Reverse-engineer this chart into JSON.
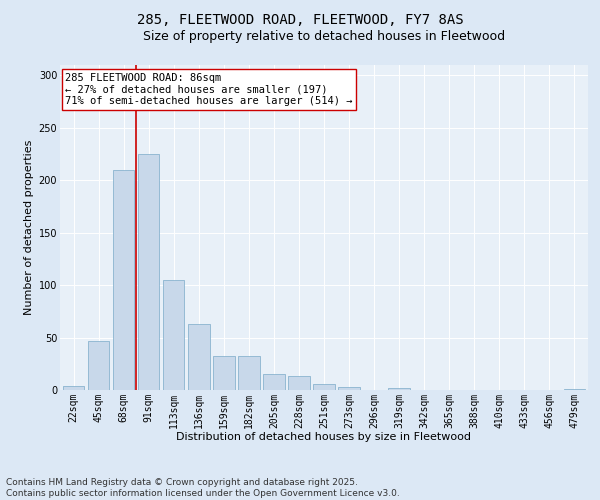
{
  "title": "285, FLEETWOOD ROAD, FLEETWOOD, FY7 8AS",
  "subtitle": "Size of property relative to detached houses in Fleetwood",
  "xlabel": "Distribution of detached houses by size in Fleetwood",
  "ylabel": "Number of detached properties",
  "categories": [
    "22sqm",
    "45sqm",
    "68sqm",
    "91sqm",
    "113sqm",
    "136sqm",
    "159sqm",
    "182sqm",
    "205sqm",
    "228sqm",
    "251sqm",
    "273sqm",
    "296sqm",
    "319sqm",
    "342sqm",
    "365sqm",
    "388sqm",
    "410sqm",
    "433sqm",
    "456sqm",
    "479sqm"
  ],
  "values": [
    4,
    47,
    210,
    225,
    105,
    63,
    32,
    32,
    15,
    13,
    6,
    3,
    0,
    2,
    0,
    0,
    0,
    0,
    0,
    0,
    1
  ],
  "bar_color": "#c8d8ea",
  "bar_edge_color": "#7aaac8",
  "ylim": [
    0,
    310
  ],
  "yticks": [
    0,
    50,
    100,
    150,
    200,
    250,
    300
  ],
  "vline_color": "#cc0000",
  "annotation_text": "285 FLEETWOOD ROAD: 86sqm\n← 27% of detached houses are smaller (197)\n71% of semi-detached houses are larger (514) →",
  "annotation_box_color": "#ffffff",
  "annotation_box_edge": "#cc0000",
  "footer_line1": "Contains HM Land Registry data © Crown copyright and database right 2025.",
  "footer_line2": "Contains public sector information licensed under the Open Government Licence v3.0.",
  "bg_color": "#dce8f5",
  "plot_bg_color": "#e8f0f8",
  "title_fontsize": 10,
  "subtitle_fontsize": 9,
  "axis_label_fontsize": 8,
  "tick_fontsize": 7,
  "annotation_fontsize": 7.5,
  "footer_fontsize": 6.5
}
